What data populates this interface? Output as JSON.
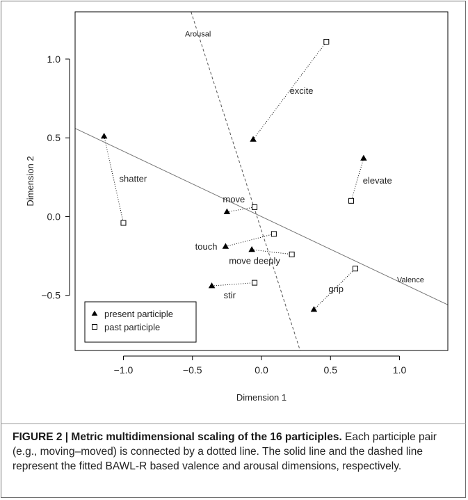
{
  "chart_data": {
    "type": "scatter",
    "title": "",
    "xlabel": "Dimension 1",
    "ylabel": "Dimension 2",
    "xlim": [
      -1.35,
      1.35
    ],
    "ylim": [
      -0.85,
      1.3
    ],
    "x_ticks": [
      -1.0,
      -0.5,
      0.0,
      0.5,
      1.0
    ],
    "x_tick_labels": [
      "−1.0",
      "−0.5",
      "0.0",
      "0.5",
      "1.0"
    ],
    "y_ticks": [
      -0.5,
      0.0,
      0.5,
      1.0
    ],
    "y_tick_labels": [
      "−0.5",
      "0.0",
      "0.5",
      "1.0"
    ],
    "grid": false,
    "legend_position": "bottom-left",
    "series": [
      {
        "name": "present participle",
        "marker": "filled-triangle",
        "color": "#000000",
        "points": [
          {
            "x": -1.14,
            "y": 0.51
          },
          {
            "x": -0.06,
            "y": 0.49
          },
          {
            "x": 0.74,
            "y": 0.37
          },
          {
            "x": -0.25,
            "y": 0.03
          },
          {
            "x": -0.26,
            "y": -0.19
          },
          {
            "x": -0.07,
            "y": -0.21
          },
          {
            "x": -0.36,
            "y": -0.44
          },
          {
            "x": 0.38,
            "y": -0.59
          }
        ]
      },
      {
        "name": "past participle",
        "marker": "open-square",
        "color": "#000000",
        "points": [
          {
            "x": -1.0,
            "y": -0.04
          },
          {
            "x": 0.47,
            "y": 1.11
          },
          {
            "x": 0.65,
            "y": 0.1
          },
          {
            "x": -0.05,
            "y": 0.06
          },
          {
            "x": 0.09,
            "y": -0.11
          },
          {
            "x": 0.22,
            "y": -0.24
          },
          {
            "x": -0.05,
            "y": -0.42
          },
          {
            "x": 0.68,
            "y": -0.33
          }
        ]
      }
    ],
    "pairs": [
      {
        "label": "shatter",
        "present": [
          -1.14,
          0.51
        ],
        "past": [
          -1.0,
          -0.04
        ],
        "label_at": [
          -0.93,
          0.24
        ]
      },
      {
        "label": "excite",
        "present": [
          -0.06,
          0.49
        ],
        "past": [
          0.47,
          1.11
        ],
        "label_at": [
          0.29,
          0.8
        ]
      },
      {
        "label": "elevate",
        "present": [
          0.74,
          0.37
        ],
        "past": [
          0.65,
          0.1
        ],
        "label_at": [
          0.84,
          0.23
        ]
      },
      {
        "label": "move",
        "present": [
          -0.25,
          0.03
        ],
        "past": [
          -0.05,
          0.06
        ],
        "label_at": [
          -0.2,
          0.11
        ]
      },
      {
        "label": "touch",
        "present": [
          -0.26,
          -0.19
        ],
        "past": [
          0.09,
          -0.11
        ],
        "label_at": [
          -0.4,
          -0.19
        ]
      },
      {
        "label": "move deeply",
        "present": [
          -0.07,
          -0.21
        ],
        "past": [
          0.22,
          -0.24
        ],
        "label_at": [
          -0.05,
          -0.28
        ]
      },
      {
        "label": "stir",
        "present": [
          -0.36,
          -0.44
        ],
        "past": [
          -0.05,
          -0.42
        ],
        "label_at": [
          -0.23,
          -0.5
        ]
      },
      {
        "label": "grip",
        "present": [
          0.38,
          -0.59
        ],
        "past": [
          0.68,
          -0.33
        ],
        "label_at": [
          0.54,
          -0.46
        ]
      }
    ],
    "fitted_lines": [
      {
        "name": "Valence",
        "style": "solid",
        "from": [
          -1.35,
          0.56
        ],
        "to": [
          1.35,
          -0.56
        ],
        "label_at": [
          1.08,
          -0.4
        ]
      },
      {
        "name": "Arousal",
        "style": "dashed",
        "from": [
          -0.51,
          1.3
        ],
        "to": [
          0.28,
          -0.85
        ],
        "label_at": [
          -0.46,
          1.16
        ]
      }
    ]
  },
  "caption": {
    "label": "FIGURE 2 | Metric multidimensional scaling of the 16 participles.",
    "text": " Each participle pair (e.g., moving–moved) is connected by a dotted line. The solid line and the dashed line represent the fitted BAWL-R based valence and arousal dimensions, respectively."
  }
}
